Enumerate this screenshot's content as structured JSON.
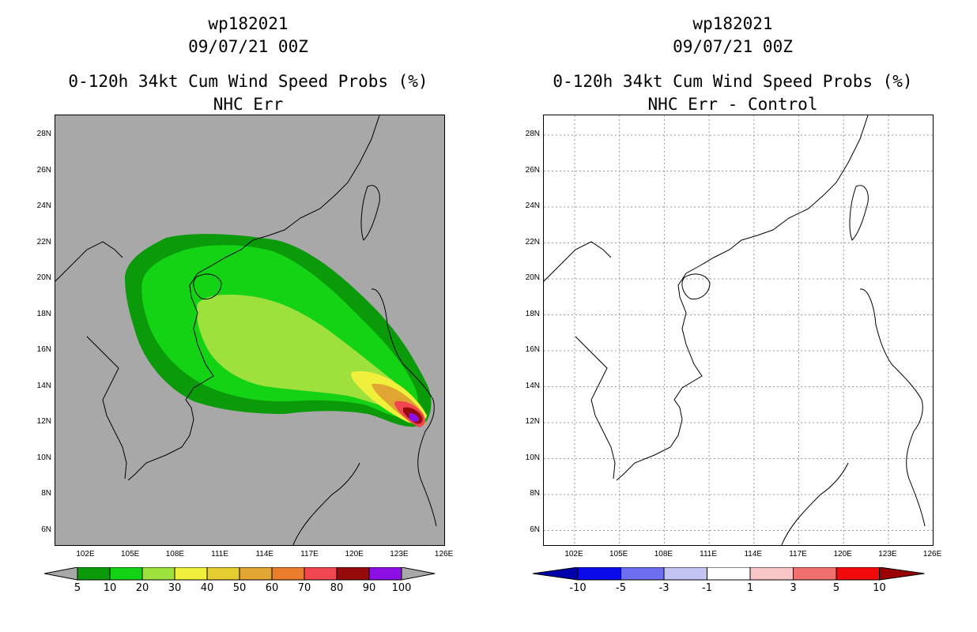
{
  "left_panel": {
    "storm_id": "wp182021",
    "datetime": "09/07/21 00Z",
    "product": "0-120h 34kt Cum Wind Speed Probs (%)",
    "subtitle": "NHC Err",
    "background_color": "#a8a8a8",
    "colorbar": {
      "labels": [
        "5",
        "10",
        "20",
        "30",
        "40",
        "50",
        "60",
        "70",
        "80",
        "90",
        "100"
      ],
      "colors": [
        "#0a9a0a",
        "#14d214",
        "#9ee03c",
        "#f0f03c",
        "#e6cd32",
        "#e1a532",
        "#eb7d2d",
        "#f04650",
        "#960a0a",
        "#8c10e6"
      ],
      "arrow_color": "#a8a8a8"
    }
  },
  "right_panel": {
    "storm_id": "wp182021",
    "datetime": "09/07/21 00Z",
    "product": "0-120h 34kt Cum Wind Speed Probs (%)",
    "subtitle": "NHC Err - Control",
    "background_color": "#ffffff",
    "colorbar": {
      "labels": [
        "-10",
        "-5",
        "-3",
        "-1",
        "1",
        "3",
        "5",
        "10"
      ],
      "colors": [
        "#0000aa",
        "#0a0aea",
        "#6e6ef0",
        "#c4c4f4",
        "#ffffff",
        "#f8c6c6",
        "#f07070",
        "#f00a0a",
        "#9a0000"
      ]
    }
  },
  "axes": {
    "lat_labels": [
      "28N",
      "26N",
      "24N",
      "22N",
      "20N",
      "18N",
      "16N",
      "14N",
      "12N",
      "10N",
      "8N",
      "6N"
    ],
    "lon_labels": [
      "102E",
      "105E",
      "108E",
      "111E",
      "114E",
      "117E",
      "120E",
      "123E",
      "126E"
    ]
  },
  "map_data": {
    "lat_range": [
      5,
      29
    ],
    "lon_range": [
      100,
      126
    ],
    "grid": "dotted on right panel",
    "probability_bands": [
      {
        "min_pct": 5,
        "color": "#0a9a0a"
      },
      {
        "min_pct": 10,
        "color": "#14d214"
      },
      {
        "min_pct": 20,
        "color": "#9ee03c"
      },
      {
        "min_pct": 30,
        "color": "#f0f03c"
      },
      {
        "min_pct": 50,
        "color": "#e1a532"
      },
      {
        "min_pct": 70,
        "color": "#f04650"
      },
      {
        "min_pct": 80,
        "color": "#960a0a"
      },
      {
        "min_pct": 90,
        "color": "#8c10e6"
      }
    ]
  }
}
